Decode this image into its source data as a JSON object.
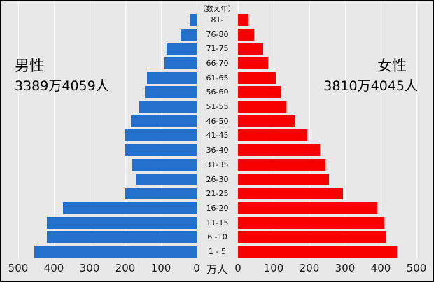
{
  "chart_data": {
    "type": "bar",
    "variant": "population-pyramid",
    "title": "",
    "age_axis_title": "（数え年）",
    "unit_label": "万人",
    "grid": true,
    "x_max": 500,
    "x_ticks_left": [
      500,
      400,
      300,
      200,
      100,
      0
    ],
    "x_ticks_right": [
      0,
      100,
      200,
      300,
      400,
      500
    ],
    "age_groups": [
      "81-",
      "76-80",
      "71-75",
      "66-70",
      "61-65",
      "56-60",
      "51-55",
      "46-50",
      "41-45",
      "36-40",
      "31-35",
      "26-30",
      "21-25",
      "16-20",
      "11-15",
      "6 -10",
      "1 - 5"
    ],
    "series": [
      {
        "name": "男性",
        "total": "3389万4059人",
        "side": "left",
        "color": "#2270cc",
        "values": [
          20,
          45,
          85,
          90,
          140,
          145,
          160,
          185,
          200,
          200,
          180,
          170,
          200,
          375,
          420,
          420,
          455
        ]
      },
      {
        "name": "女性",
        "total": "3810万4045人",
        "side": "right",
        "color": "#f80000",
        "values": [
          30,
          45,
          70,
          85,
          105,
          120,
          135,
          160,
          195,
          230,
          245,
          255,
          295,
          390,
          410,
          415,
          445
        ]
      }
    ],
    "colors": {
      "background": "#e8e8e8",
      "gridline": "#ffffff",
      "male_bar": "#2270cc",
      "female_bar": "#f80000",
      "text": "#111111"
    }
  }
}
